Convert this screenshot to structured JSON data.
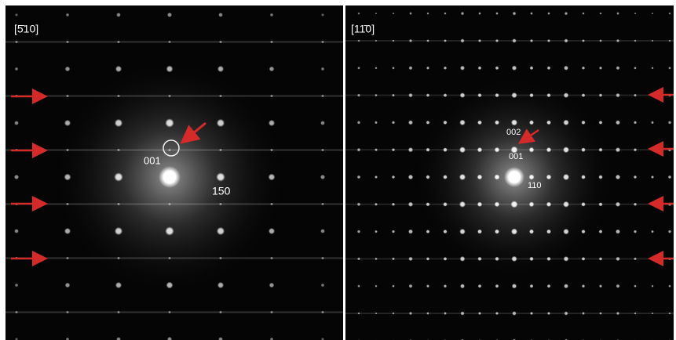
{
  "panels": [
    {
      "label": "[5̄10]",
      "annotations": [
        "001",
        "150"
      ]
    },
    {
      "label": "[11̄0]",
      "annotations": [
        "002",
        "001",
        "110"
      ]
    }
  ]
}
